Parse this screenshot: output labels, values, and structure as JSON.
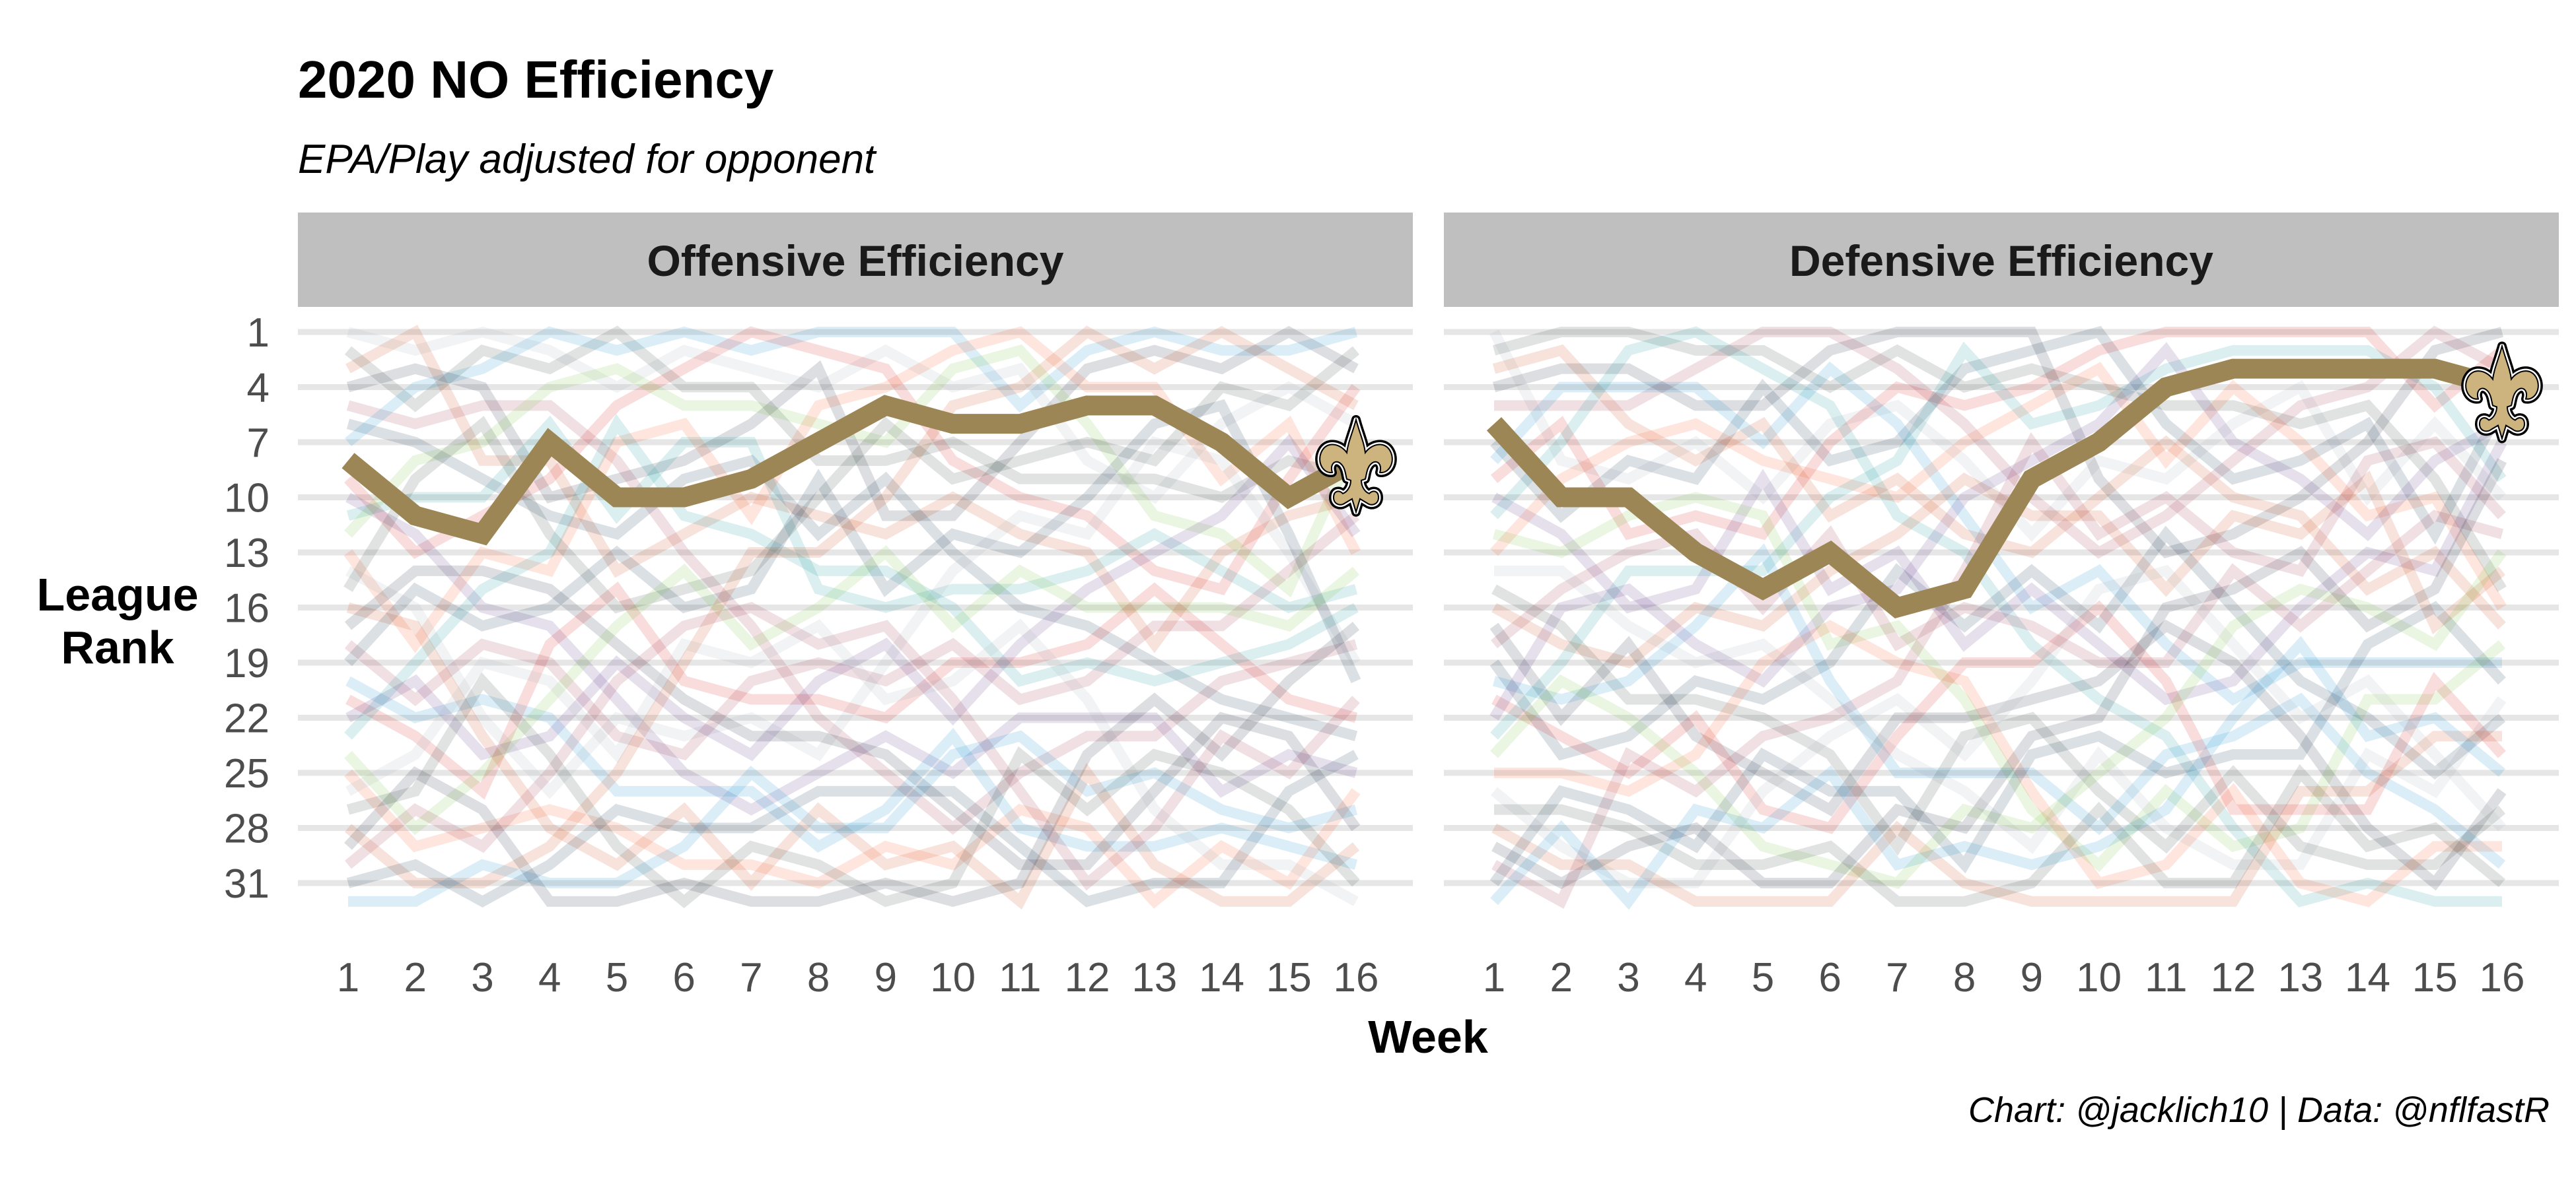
{
  "chart_data": {
    "type": "line",
    "title": "2020 NO Efficiency",
    "subtitle": "EPA/Play adjusted for opponent",
    "caption": "Chart: @jacklich10 | Data: @nflfastR",
    "xlabel": "Week",
    "ylabel": "League Rank",
    "x": [
      1,
      2,
      3,
      4,
      5,
      6,
      7,
      8,
      9,
      10,
      11,
      12,
      13,
      14,
      15,
      16
    ],
    "y_ticks": [
      1,
      4,
      7,
      10,
      13,
      16,
      19,
      22,
      25,
      28,
      31
    ],
    "ylim": [
      32,
      1
    ],
    "y_reversed": true,
    "grid": "horizontal-major",
    "legend": "none",
    "highlight_team": "NO",
    "highlight_color": "#9D8655",
    "logo_fill": "#CDB47E",
    "background_colors": [
      "#A5ACAF",
      "#203731",
      "#C83803",
      "#0B162A",
      "#97233F",
      "#002244",
      "#0085CA",
      "#D50A0A",
      "#4F2683",
      "#008E97",
      "#69BE28",
      "#FB4F14"
    ],
    "panels": [
      {
        "name": "Offensive Efficiency",
        "highlight_values": [
          8,
          11,
          12,
          7,
          10,
          10,
          9,
          7,
          5,
          6,
          6,
          5,
          5,
          7,
          10,
          8
        ]
      },
      {
        "name": "Defensive Efficiency",
        "highlight_values": [
          6,
          10,
          10,
          13,
          15,
          13,
          16,
          15,
          9,
          7,
          4,
          3,
          3,
          3,
          3,
          4
        ]
      }
    ]
  }
}
